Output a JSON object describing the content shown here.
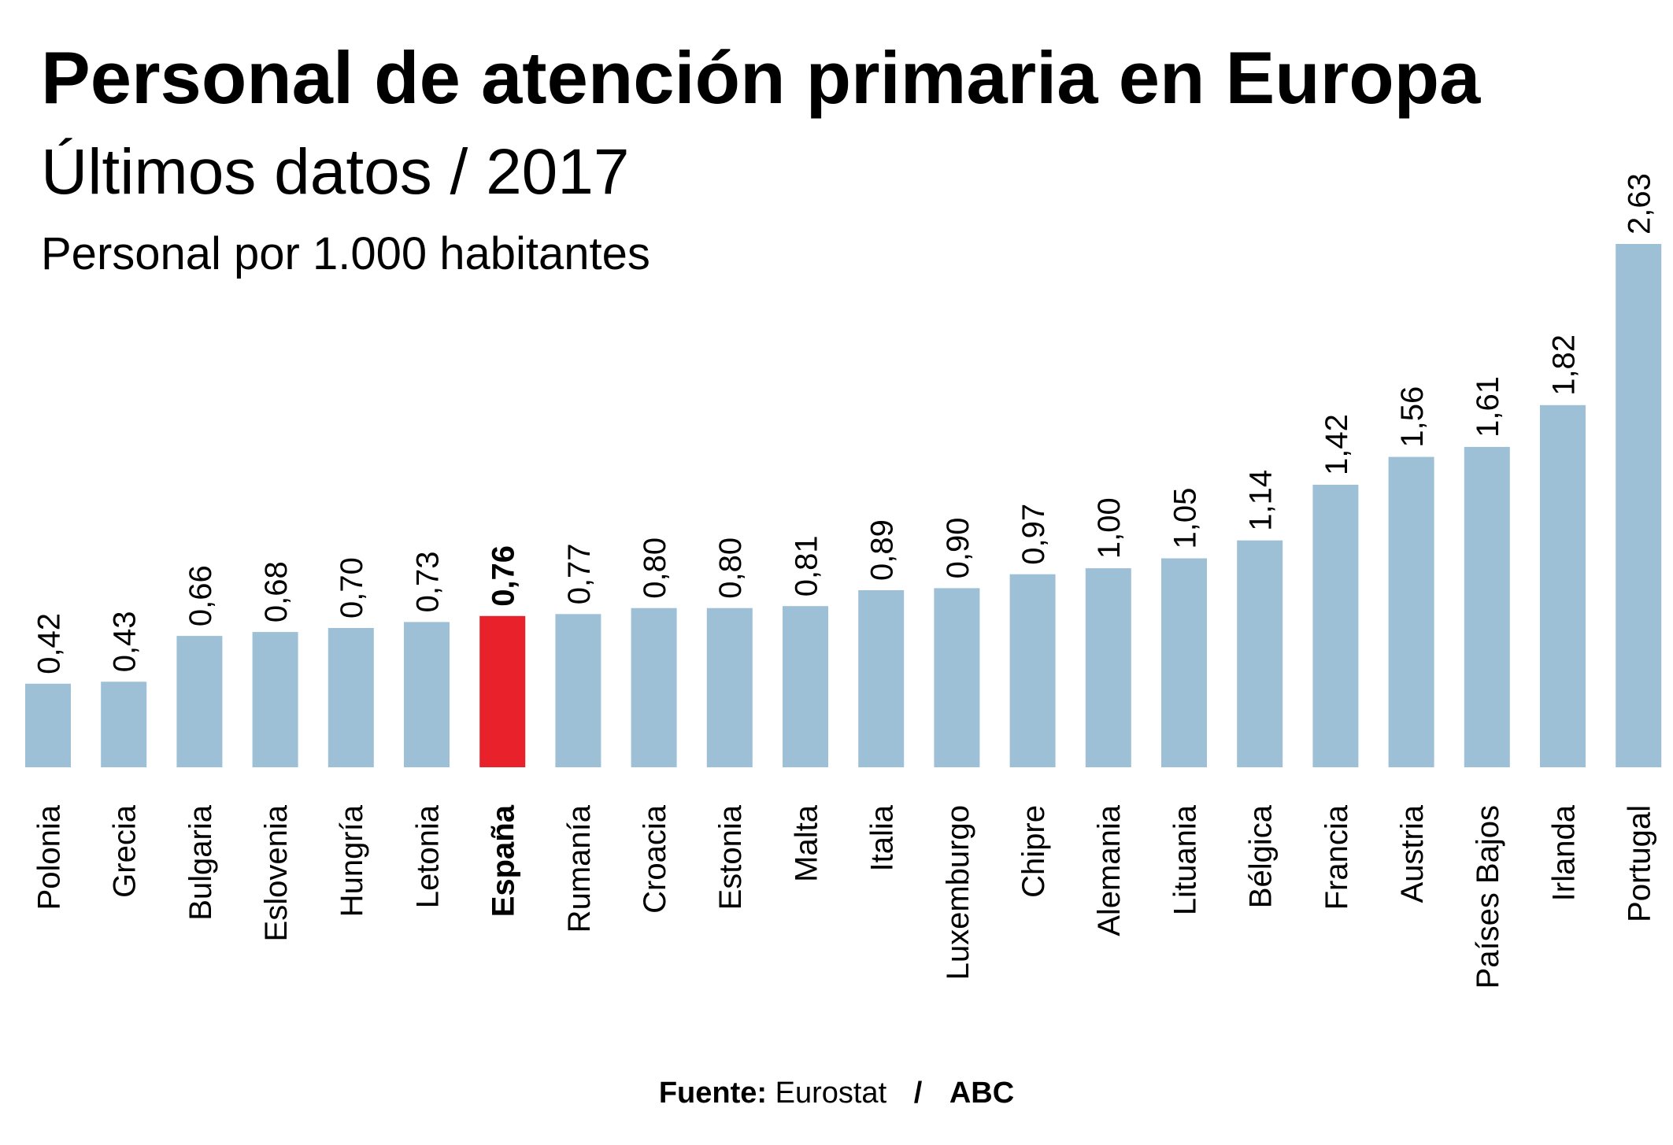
{
  "header": {
    "title": "Personal de atención primaria en Europa",
    "subtitle": "Últimos datos / 2017",
    "unit": "Personal por 1.000 habitantes"
  },
  "footer": {
    "source_label": "Fuente:",
    "source_name": "Eurostat",
    "separator": "/",
    "publisher": "ABC"
  },
  "colors": {
    "bar": "#9dc0d6",
    "highlight": "#e8212b",
    "text": "#000000"
  },
  "chart_data": {
    "type": "bar",
    "title": "Personal de atención primaria en Europa",
    "subtitle": "Últimos datos / 2017",
    "ylabel": "Personal por 1.000 habitantes",
    "xlabel": "",
    "grid": false,
    "legend": "none",
    "ylim": [
      0,
      2.63
    ],
    "highlight": "España",
    "categories": [
      "Polonia",
      "Grecia",
      "Bulgaria",
      "Eslovenia",
      "Hungría",
      "Letonia",
      "España",
      "Rumanía",
      "Croacia",
      "Estonia",
      "Malta",
      "Italia",
      "Luxemburgo",
      "Chipre",
      "Alemania",
      "Lituania",
      "Bélgica",
      "Francia",
      "Austria",
      "Países Bajos",
      "Irlanda",
      "Portugal"
    ],
    "values": [
      0.42,
      0.43,
      0.66,
      0.68,
      0.7,
      0.73,
      0.76,
      0.77,
      0.8,
      0.8,
      0.81,
      0.89,
      0.9,
      0.97,
      1.0,
      1.05,
      1.14,
      1.42,
      1.56,
      1.61,
      1.82,
      2.63
    ],
    "value_labels": [
      "0,42",
      "0,43",
      "0,66",
      "0,68",
      "0,70",
      "0,73",
      "0,76",
      "0,77",
      "0,80",
      "0,80",
      "0,81",
      "0,89",
      "0,90",
      "0,97",
      "1,00",
      "1,05",
      "1,14",
      "1,42",
      "1,56",
      "1,61",
      "1,82",
      "2,63"
    ]
  }
}
